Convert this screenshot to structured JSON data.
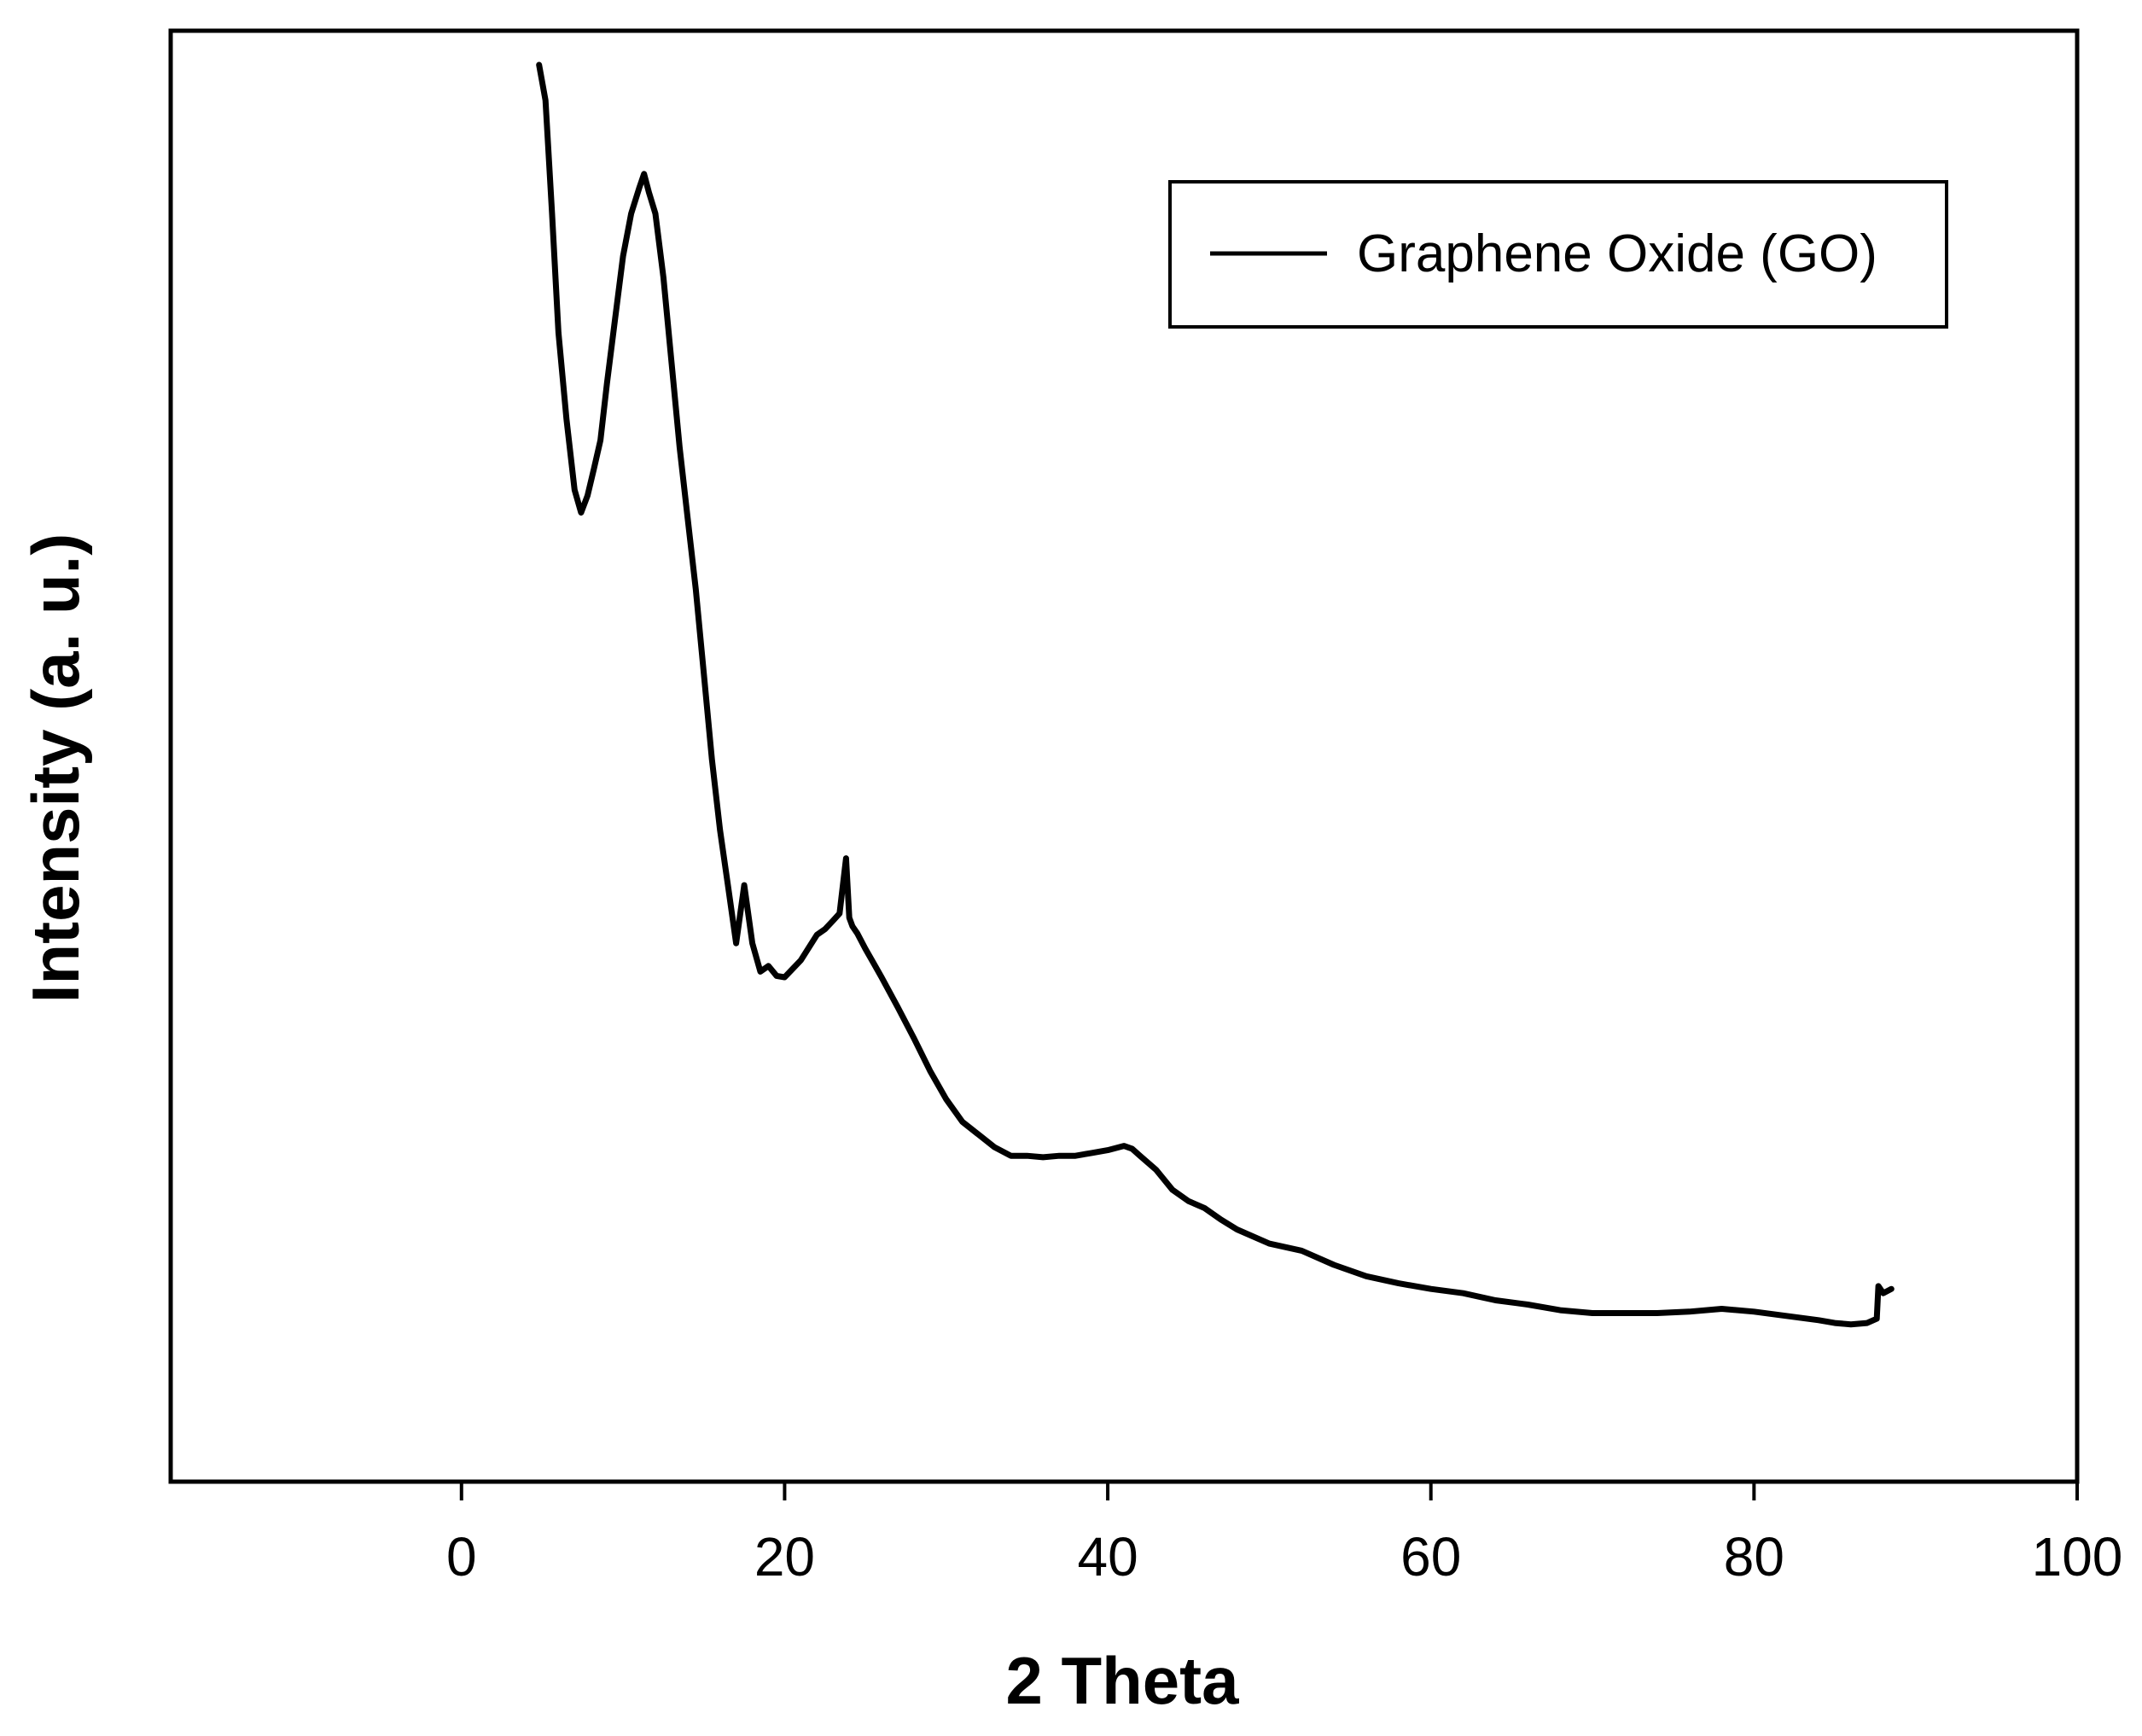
{
  "chart_data": {
    "type": "line",
    "title": "",
    "xlabel": "2 Theta",
    "ylabel": "Intensity (a. u.)",
    "xlim": [
      -18,
      100
    ],
    "ylim": [
      0,
      100
    ],
    "x_ticks": [
      0,
      20,
      40,
      60,
      80,
      100
    ],
    "y_ticks": [],
    "grid": false,
    "legend_position": "top-right",
    "line_color": "#000000",
    "series": [
      {
        "name": "Graphene Oxide (GO)",
        "x": [
          4.8,
          5.2,
          5.6,
          6.0,
          6.5,
          7.0,
          7.4,
          7.8,
          8.2,
          8.6,
          9.0,
          9.5,
          10.0,
          10.5,
          11.0,
          11.3,
          11.6,
          12.0,
          12.5,
          13.0,
          13.5,
          14.0,
          14.5,
          15.0,
          15.5,
          16.0,
          16.5,
          17.0,
          17.5,
          18.0,
          18.5,
          19.0,
          19.5,
          20.0,
          20.5,
          21.0,
          21.5,
          22.0,
          22.5,
          23.0,
          23.4,
          23.8,
          24.0,
          24.2,
          24.5,
          25.0,
          25.5,
          26.0,
          27.0,
          28.0,
          29.0,
          30.0,
          31.0,
          32.0,
          33.0,
          34.0,
          35.0,
          36.0,
          37.0,
          38.0,
          39.0,
          40.0,
          41.0,
          41.5,
          42.0,
          43.0,
          44.0,
          45.0,
          46.0,
          47.0,
          48.0,
          50.0,
          52.0,
          54.0,
          56.0,
          58.0,
          60.0,
          62.0,
          64.0,
          66.0,
          68.0,
          70.0,
          72.0,
          74.0,
          76.0,
          78.0,
          80.0,
          82.0,
          84.0,
          85.0,
          86.0,
          87.0,
          87.6,
          87.7,
          88.0,
          88.5
        ],
        "y": [
          100.0,
          97.5,
          89.6,
          81.1,
          75.0,
          70.0,
          68.4,
          69.6,
          71.5,
          73.5,
          77.5,
          82.0,
          86.5,
          89.5,
          91.3,
          92.3,
          91.0,
          89.5,
          85.0,
          79.0,
          73.0,
          68.0,
          63.0,
          57.0,
          51.0,
          46.0,
          42.0,
          38.0,
          42.1,
          38.0,
          36.0,
          36.4,
          35.7,
          35.6,
          36.2,
          36.8,
          37.7,
          38.6,
          39.0,
          39.6,
          40.1,
          44.0,
          39.8,
          39.2,
          38.7,
          37.6,
          36.6,
          35.6,
          33.5,
          31.3,
          29.0,
          27.0,
          25.4,
          24.5,
          23.6,
          23.0,
          23.0,
          22.9,
          23.0,
          23.0,
          23.2,
          23.4,
          23.7,
          23.5,
          23.0,
          22.0,
          20.6,
          19.8,
          19.3,
          18.5,
          17.8,
          16.8,
          16.3,
          15.3,
          14.5,
          14.0,
          13.6,
          13.3,
          12.8,
          12.5,
          12.1,
          11.9,
          11.9,
          11.9,
          12.0,
          12.2,
          12.0,
          11.7,
          11.4,
          11.2,
          11.1,
          11.2,
          11.5,
          13.8,
          13.3,
          13.6
        ]
      }
    ]
  }
}
